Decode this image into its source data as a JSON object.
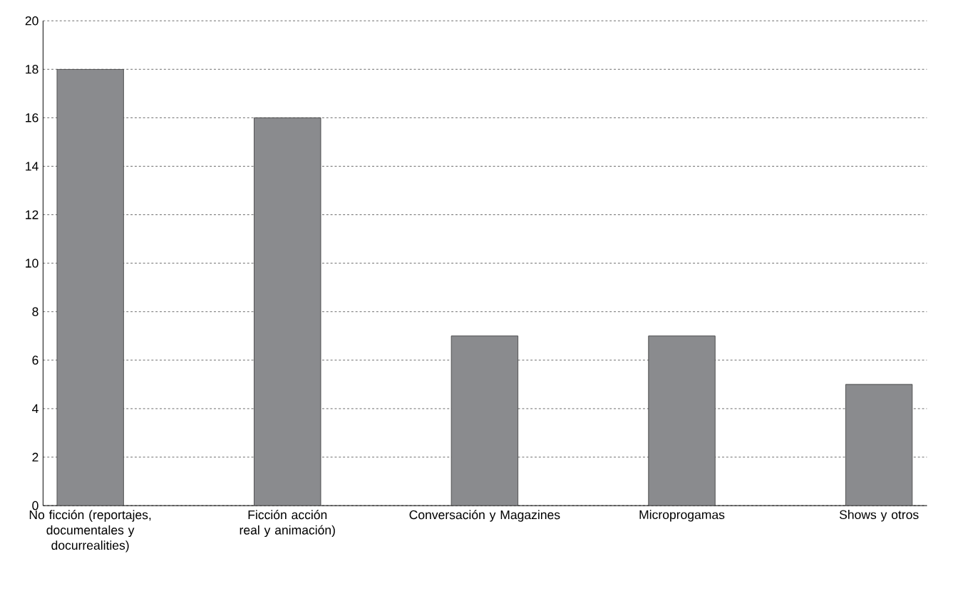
{
  "chart_data": {
    "type": "bar",
    "categories": [
      "No ficción (reportajes, documentales y docurrealities)",
      "Ficción acción real y animación)",
      "Conversación y Magazines",
      "Microprogamas",
      "Shows y otros"
    ],
    "values": [
      18,
      16,
      7,
      7,
      5
    ],
    "color": "#8a8b8e",
    "ylim": [
      0,
      20
    ],
    "yticks": [
      0,
      2,
      4,
      6,
      8,
      10,
      12,
      14,
      16,
      18,
      20
    ],
    "grid": "y"
  }
}
